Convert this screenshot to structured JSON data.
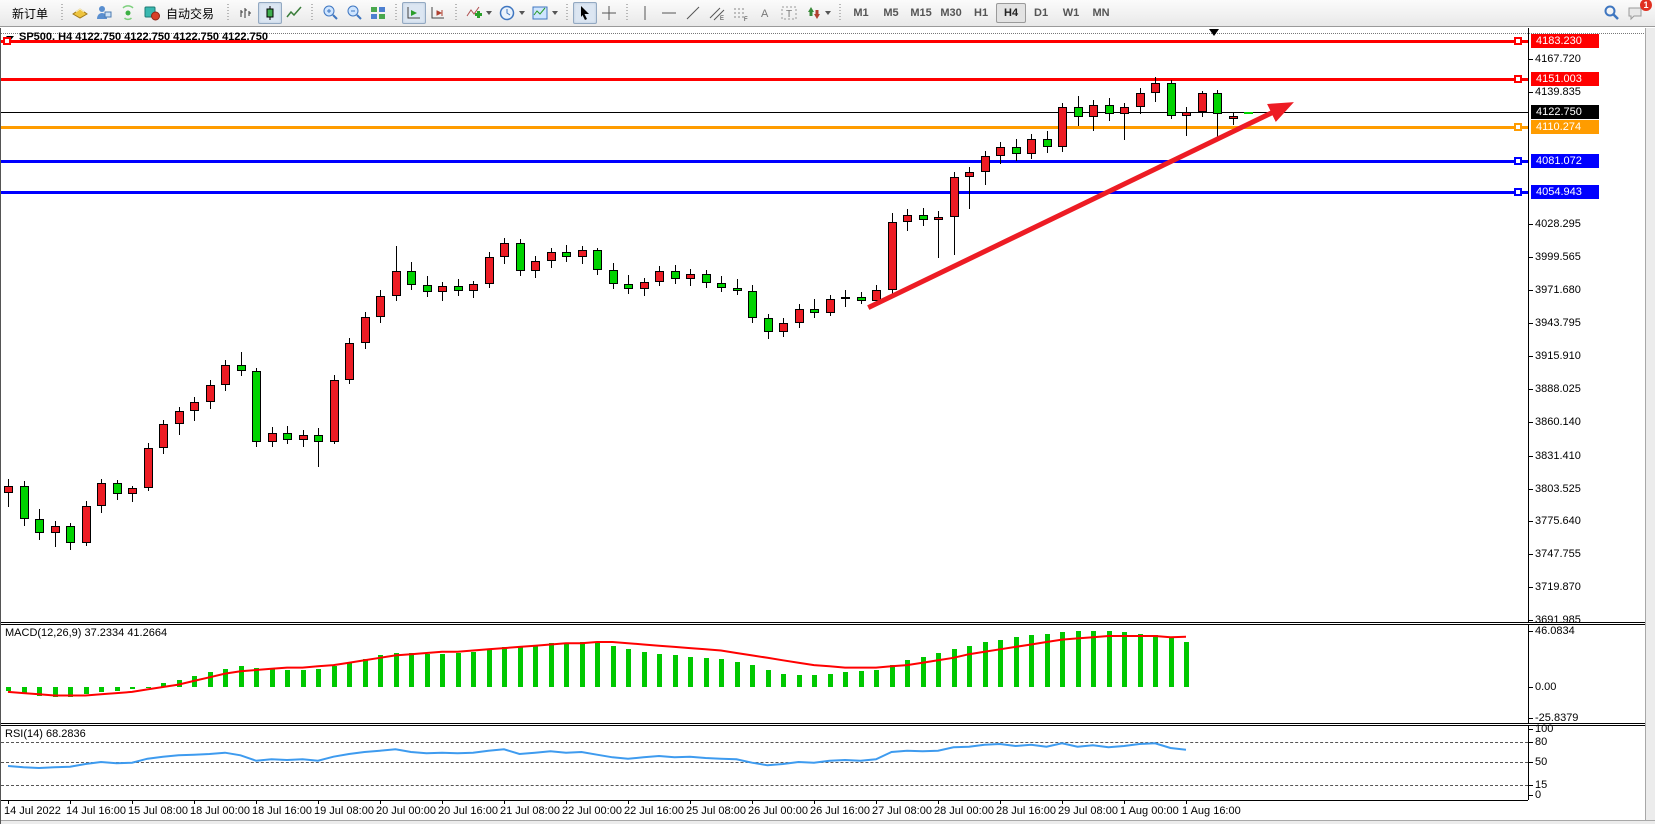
{
  "toolbar": {
    "new_order": "新订单",
    "autotrading": "自动交易",
    "timeframes": [
      "M1",
      "M5",
      "M15",
      "M30",
      "H1",
      "H4",
      "D1",
      "W1",
      "MN"
    ],
    "active_timeframe": "H4",
    "notification_badge": "1"
  },
  "chart": {
    "title": "SP500, H4  4122.750 4122.750 4122.750 4122.750"
  },
  "chart_data": {
    "type": "candlestick",
    "symbol": "SP500",
    "timeframe": "H4",
    "current_ohlc": {
      "open": "4122.750",
      "high": "4122.750",
      "low": "4122.750",
      "close": "4122.750"
    },
    "colors": {
      "bull": "#ed1c24",
      "bear": "#00d300",
      "macd_histogram": "#00c800",
      "macd_signal": "#ff0000",
      "rsi_line": "#3e9bef"
    },
    "price_axis_ticks": [
      "4167.720",
      "4139.835",
      "4028.295",
      "3999.565",
      "3971.680",
      "3943.795",
      "3915.910",
      "3888.025",
      "3860.140",
      "3831.410",
      "3803.525",
      "3775.640",
      "3747.755",
      "3719.870",
      "3691.985"
    ],
    "hlines": [
      {
        "price": 4183.23,
        "label": "4183.230",
        "color": "#ff0000",
        "thickness": 3,
        "left_handle": true,
        "right_handle": true
      },
      {
        "price": 4151.003,
        "label": "4151.003",
        "color": "#ff0000",
        "thickness": 3,
        "right_handle": true
      },
      {
        "price": 4122.75,
        "label": "4122.750",
        "color": "#000000",
        "thickness": 1,
        "current": true
      },
      {
        "price": 4110.274,
        "label": "4110.274",
        "color": "#ff9c00",
        "thickness": 3,
        "right_handle": true
      },
      {
        "price": 4081.072,
        "label": "4081.072",
        "color": "#0000ff",
        "thickness": 3,
        "right_handle": true
      },
      {
        "price": 4054.943,
        "label": "4054.943",
        "color": "#0000ff",
        "thickness": 3,
        "right_handle": true
      }
    ],
    "trend_arrow": {
      "from_bar": 55.5,
      "from_price": 3957,
      "to_bar": 81.8,
      "to_price": 4124,
      "color": "#ed1c24"
    },
    "candles": [
      [
        3800,
        3812,
        3788,
        3806
      ],
      [
        3806,
        3810,
        3772,
        3778
      ],
      [
        3778,
        3786,
        3760,
        3766
      ],
      [
        3766,
        3776,
        3754,
        3772
      ],
      [
        3772,
        3774,
        3751,
        3757
      ],
      [
        3757,
        3793,
        3755,
        3789
      ],
      [
        3789,
        3812,
        3783,
        3808
      ],
      [
        3808,
        3811,
        3794,
        3799
      ],
      [
        3799,
        3806,
        3792,
        3804
      ],
      [
        3804,
        3842,
        3801,
        3838
      ],
      [
        3838,
        3862,
        3833,
        3858
      ],
      [
        3858,
        3873,
        3849,
        3869
      ],
      [
        3869,
        3881,
        3861,
        3877
      ],
      [
        3877,
        3896,
        3871,
        3891
      ],
      [
        3891,
        3913,
        3886,
        3908
      ],
      [
        3908,
        3919,
        3899,
        3903
      ],
      [
        3903,
        3906,
        3839,
        3843
      ],
      [
        3843,
        3856,
        3839,
        3851
      ],
      [
        3851,
        3857,
        3841,
        3845
      ],
      [
        3845,
        3853,
        3839,
        3849
      ],
      [
        3849,
        3855,
        3822,
        3843
      ],
      [
        3843,
        3900,
        3841,
        3896
      ],
      [
        3896,
        3931,
        3892,
        3927
      ],
      [
        3927,
        3953,
        3922,
        3949
      ],
      [
        3949,
        3972,
        3944,
        3967
      ],
      [
        3967,
        4009,
        3963,
        3988
      ],
      [
        3988,
        3996,
        3972,
        3976
      ],
      [
        3976,
        3984,
        3966,
        3970
      ],
      [
        3970,
        3979,
        3963,
        3975
      ],
      [
        3975,
        3981,
        3967,
        3971
      ],
      [
        3971,
        3980,
        3965,
        3977
      ],
      [
        3977,
        4004,
        3974,
        4000
      ],
      [
        4000,
        4016,
        3994,
        4012
      ],
      [
        4012,
        4015,
        3984,
        3988
      ],
      [
        3988,
        4001,
        3982,
        3997
      ],
      [
        3997,
        4008,
        3991,
        4004
      ],
      [
        4004,
        4010,
        3996,
        4000
      ],
      [
        4000,
        4009,
        3994,
        4006
      ],
      [
        4006,
        4008,
        3985,
        3989
      ],
      [
        3989,
        3995,
        3973,
        3977
      ],
      [
        3977,
        3985,
        3969,
        3973
      ],
      [
        3973,
        3982,
        3967,
        3979
      ],
      [
        3979,
        3992,
        3975,
        3988
      ],
      [
        3988,
        3993,
        3977,
        3981
      ],
      [
        3981,
        3990,
        3975,
        3986
      ],
      [
        3986,
        3989,
        3974,
        3978
      ],
      [
        3978,
        3984,
        3970,
        3974
      ],
      [
        3974,
        3981,
        3968,
        3971
      ],
      [
        3971,
        3976,
        3944,
        3948
      ],
      [
        3948,
        3952,
        3930,
        3936
      ],
      [
        3936,
        3948,
        3932,
        3944
      ],
      [
        3944,
        3960,
        3940,
        3956
      ],
      [
        3956,
        3964,
        3948,
        3952
      ],
      [
        3952,
        3968,
        3950,
        3964
      ],
      [
        3964,
        3972,
        3958,
        3966
      ],
      [
        3966,
        3970,
        3960,
        3963
      ],
      [
        3963,
        3976,
        3959,
        3972
      ],
      [
        3972,
        4037,
        3968,
        4030
      ],
      [
        4030,
        4041,
        4022,
        4036
      ],
      [
        4036,
        4042,
        4026,
        4031
      ],
      [
        4031,
        4039,
        3999,
        4034
      ],
      [
        4034,
        4072,
        4002,
        4068
      ],
      [
        4068,
        4076,
        4041,
        4072
      ],
      [
        4072,
        4090,
        4061,
        4086
      ],
      [
        4086,
        4098,
        4079,
        4093
      ],
      [
        4093,
        4100,
        4081,
        4087
      ],
      [
        4087,
        4104,
        4083,
        4100
      ],
      [
        4100,
        4107,
        4088,
        4093
      ],
      [
        4093,
        4131,
        4089,
        4127
      ],
      [
        4127,
        4137,
        4111,
        4119
      ],
      [
        4119,
        4133,
        4107,
        4129
      ],
      [
        4129,
        4135,
        4115,
        4121
      ],
      [
        4121,
        4131,
        4099,
        4127
      ],
      [
        4127,
        4143,
        4121,
        4139
      ],
      [
        4139,
        4153,
        4131,
        4148
      ],
      [
        4148,
        4150,
        4117,
        4120
      ],
      [
        4120,
        4127,
        4103,
        4123
      ],
      [
        4123,
        4141,
        4119,
        4139
      ],
      [
        4139,
        4142,
        4101,
        4121
      ],
      [
        4117,
        4122,
        4112,
        4120
      ],
      [
        4122.75,
        4122.75,
        4122.75,
        4122.75
      ]
    ],
    "times": [
      "14 Jul 2022",
      "14 Jul 16:00",
      "15 Jul 08:00",
      "18 Jul 00:00",
      "18 Jul 16:00",
      "19 Jul 08:00",
      "20 Jul 00:00",
      "20 Jul 16:00",
      "21 Jul 08:00",
      "22 Jul 00:00",
      "22 Jul 16:00",
      "25 Jul 08:00",
      "26 Jul 00:00",
      "26 Jul 16:00",
      "27 Jul 08:00",
      "28 Jul 00:00",
      "28 Jul 16:00",
      "29 Jul 08:00",
      "1 Aug 00:00",
      "1 Aug 16:00"
    ],
    "macd": {
      "name": "MACD(12,26,9)",
      "value1": "37.2334",
      "value2": "41.2664",
      "axis_labels": [
        "46.0834",
        "0.00",
        "-25.8379"
      ],
      "histogram": [
        -3,
        -5,
        -7,
        -8,
        -8,
        -6,
        -4,
        -3,
        -2,
        0,
        3,
        6,
        9,
        12,
        15,
        17,
        16,
        15,
        14,
        14,
        15,
        17,
        20,
        23,
        26,
        28,
        28,
        27,
        27,
        28,
        29,
        31,
        33,
        34,
        35,
        36,
        36,
        37,
        36,
        34,
        31,
        29,
        27,
        26,
        25,
        24,
        23,
        21,
        18,
        14,
        11,
        10,
        10,
        11,
        12,
        13,
        14,
        18,
        22,
        25,
        28,
        31,
        34,
        37,
        39,
        41,
        43,
        44,
        45,
        46,
        46,
        46,
        45,
        44,
        43,
        41,
        37
      ],
      "signal": [
        -4,
        -5,
        -6,
        -7,
        -7,
        -7,
        -6,
        -5,
        -4,
        -2,
        0,
        2,
        5,
        8,
        11,
        13,
        14,
        15,
        16,
        16,
        17,
        18,
        20,
        22,
        24,
        26,
        27,
        28,
        29,
        29,
        30,
        31,
        32,
        33,
        34,
        35,
        36,
        36,
        37,
        37,
        36,
        35,
        34,
        33,
        32,
        31,
        30,
        28,
        26,
        24,
        22,
        20,
        18,
        17,
        16,
        16,
        16,
        17,
        18,
        20,
        22,
        24,
        27,
        29,
        31,
        33,
        35,
        37,
        39,
        40,
        41,
        42,
        42,
        42,
        42,
        41,
        41.3
      ]
    },
    "rsi": {
      "name": "RSI(14)",
      "value": "68.2836",
      "axis_labels": [
        "100",
        "80",
        "50",
        "15",
        "0"
      ],
      "levels": [
        80,
        50,
        15
      ],
      "values": [
        44,
        42,
        41,
        42,
        43,
        47,
        50,
        48,
        49,
        55,
        58,
        60,
        61,
        62,
        64,
        60,
        52,
        54,
        53,
        54,
        52,
        58,
        62,
        65,
        67,
        69,
        65,
        63,
        64,
        63,
        64,
        67,
        69,
        62,
        64,
        66,
        64,
        65,
        61,
        57,
        55,
        57,
        59,
        57,
        58,
        56,
        55,
        54,
        49,
        45,
        47,
        50,
        49,
        52,
        53,
        52,
        54,
        65,
        67,
        66,
        67,
        72,
        73,
        76,
        77,
        74,
        76,
        73,
        78,
        73,
        75,
        72,
        74,
        77,
        78,
        71,
        68.28
      ]
    }
  }
}
